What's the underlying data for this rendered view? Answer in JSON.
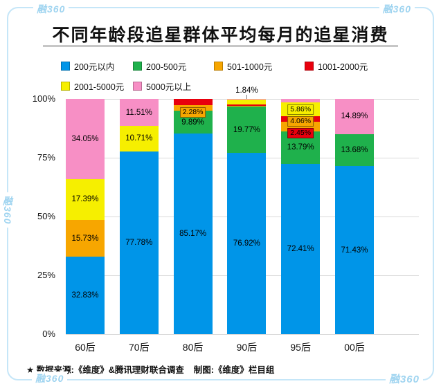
{
  "page": {
    "watermark": "融360",
    "footnote": "★ 数据来源:《维度》&腾讯理财联合调查    制图:《维度》栏目组"
  },
  "chart_data": {
    "type": "bar",
    "variant": "stacked-percent-column",
    "title": "不同年龄段追星群体平均每月的追星消费",
    "categories": [
      "60后",
      "70后",
      "80后",
      "90后",
      "95后",
      "00后"
    ],
    "legend_position": "top",
    "grid": true,
    "ylim": [
      0,
      100
    ],
    "y_ticks": [
      "100%",
      "75%",
      "50%",
      "25%",
      "0%"
    ],
    "legend": [
      {
        "name": "200元以内",
        "color": "#0095e8"
      },
      {
        "name": "200-500元",
        "color": "#1fb14c"
      },
      {
        "name": "501-1000元",
        "color": "#f7a600"
      },
      {
        "name": "1001-2000元",
        "color": "#e8000d"
      },
      {
        "name": "2001-5000元",
        "color": "#f6ef00"
      },
      {
        "name": "5000元以上",
        "color": "#f78fc5"
      }
    ],
    "bars": [
      {
        "category": "60后",
        "segments": [
          {
            "series": "200元以内",
            "value": 32.83,
            "label": "32.83%",
            "label_mode": "inside"
          },
          {
            "series": "501-1000元",
            "value": 15.73,
            "label": "15.73%",
            "label_mode": "inside"
          },
          {
            "series": "2001-5000元",
            "value": 17.39,
            "label": "17.39%",
            "label_mode": "inside"
          },
          {
            "series": "5000元以上",
            "value": 34.05,
            "label": "34.05%",
            "label_mode": "inside"
          }
        ]
      },
      {
        "category": "70后",
        "segments": [
          {
            "series": "200元以内",
            "value": 77.78,
            "label": "77.78%",
            "label_mode": "inside"
          },
          {
            "series": "2001-5000元",
            "value": 10.71,
            "label": "10.71%",
            "label_mode": "inside"
          },
          {
            "series": "5000元以上",
            "value": 11.51,
            "label": "11.51%",
            "label_mode": "inside"
          }
        ]
      },
      {
        "category": "80后",
        "segments": [
          {
            "series": "200元以内",
            "value": 85.17,
            "label": "85.17%",
            "label_mode": "inside"
          },
          {
            "series": "200-500元",
            "value": 9.89,
            "label": "9.89%",
            "label_mode": "inside"
          },
          {
            "series": "501-1000元",
            "value": 2.28,
            "label": "2.28%",
            "label_mode": "box",
            "box_rank": 0
          },
          {
            "series": "1001-2000元",
            "value": 2.66,
            "label": null,
            "estimated": true
          }
        ]
      },
      {
        "category": "90后",
        "segments": [
          {
            "series": "200元以内",
            "value": 76.92,
            "label": "76.92%",
            "label_mode": "inside"
          },
          {
            "series": "200-500元",
            "value": 19.77,
            "label": "19.77%",
            "label_mode": "inside"
          },
          {
            "series": "501-1000元",
            "value": 0.5,
            "label": null,
            "estimated": true
          },
          {
            "series": "1001-2000元",
            "value": 0.6,
            "label": null,
            "estimated": true
          },
          {
            "series": "2001-5000元",
            "value": 1.84,
            "label": "1.84%",
            "label_mode": "above"
          },
          {
            "series": "5000元以上",
            "value": 0.37,
            "label": null,
            "estimated": true
          }
        ]
      },
      {
        "category": "95后",
        "segments": [
          {
            "series": "200元以内",
            "value": 72.41,
            "label": "72.41%",
            "label_mode": "inside"
          },
          {
            "series": "200-500元",
            "value": 13.79,
            "label": "13.79%",
            "label_mode": "inside"
          },
          {
            "series": "501-1000元",
            "value": 4.06,
            "label": "4.06%",
            "label_mode": "box",
            "box_rank": 1
          },
          {
            "series": "1001-2000元",
            "value": 2.45,
            "label": "2.45%",
            "label_mode": "box",
            "box_rank": 2
          },
          {
            "series": "2001-5000元",
            "value": 5.86,
            "label": "5.86%",
            "label_mode": "box",
            "box_rank": 0
          },
          {
            "series": "5000元以上",
            "value": 1.43,
            "label": null,
            "estimated": true
          }
        ]
      },
      {
        "category": "00后",
        "segments": [
          {
            "series": "200元以内",
            "value": 71.43,
            "label": "71.43%",
            "label_mode": "inside"
          },
          {
            "series": "200-500元",
            "value": 13.68,
            "label": "13.68%",
            "label_mode": "inside"
          },
          {
            "series": "5000元以上",
            "value": 14.89,
            "label": "14.89%",
            "label_mode": "inside"
          }
        ]
      }
    ]
  }
}
